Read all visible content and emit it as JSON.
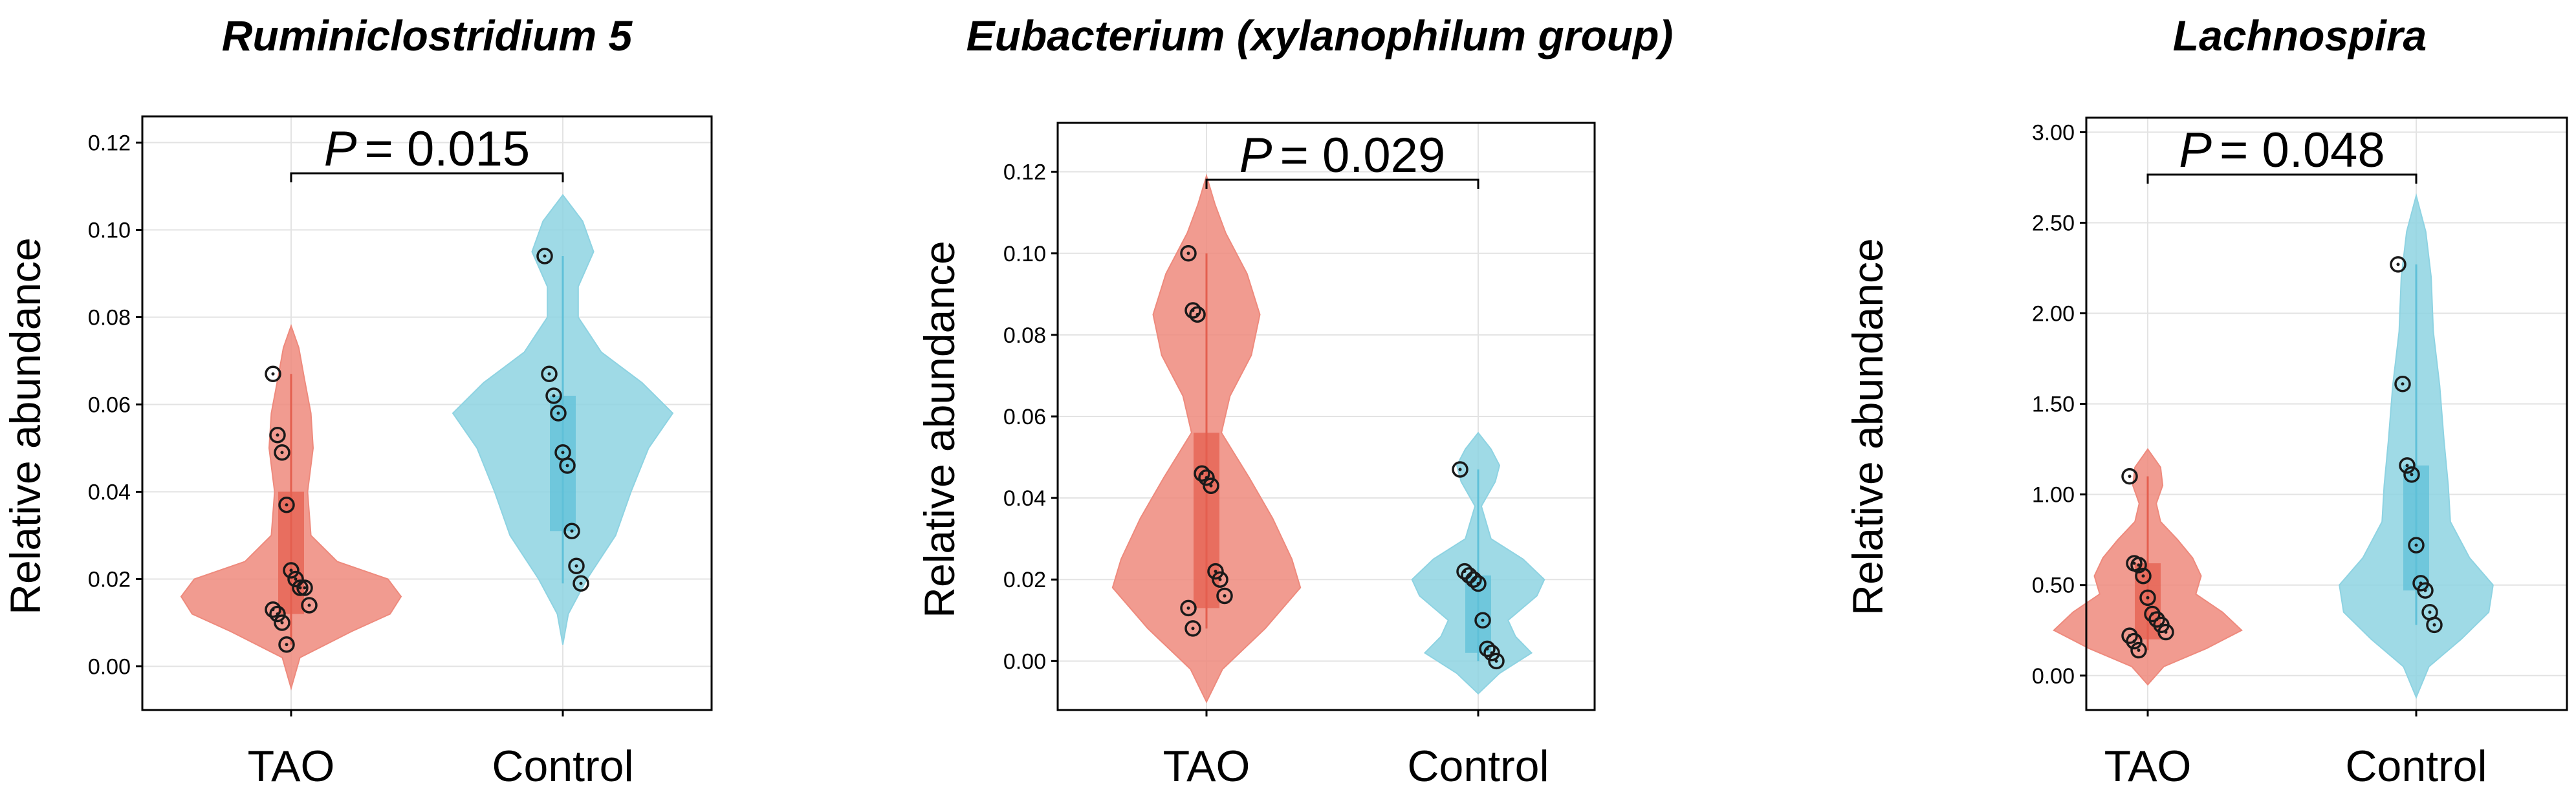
{
  "colors": {
    "tao": "#ee8a7d",
    "control": "#8ed3e2",
    "tao_box": "#e45f4f",
    "control_box": "#5fc0d8",
    "point": "#1a1a1a"
  },
  "chart_data": [
    {
      "type": "violin",
      "title": "Ruminiclostridium 5",
      "ylabel": "Relative abundance",
      "p_prefix": "P",
      "p_value": "= 0.015",
      "ylim": [
        -0.01,
        0.126
      ],
      "yticks": [
        0.0,
        0.02,
        0.04,
        0.06,
        0.08,
        0.1,
        0.12
      ],
      "ytick_labels": [
        "0.00",
        "0.02",
        "0.04",
        "0.06",
        "0.08",
        "0.10",
        "0.12"
      ],
      "categories": [
        "TAO",
        "Control"
      ],
      "series": [
        {
          "points": [
            0.067,
            0.053,
            0.049,
            0.037,
            0.022,
            0.02,
            0.018,
            0.018,
            0.014,
            0.013,
            0.012,
            0.01,
            0.005
          ],
          "box": [
            0.012,
            0.04
          ],
          "violin": [
            [
              -0.005,
              0
            ],
            [
              0.002,
              0.08
            ],
            [
              0.008,
              0.55
            ],
            [
              0.012,
              0.9
            ],
            [
              0.016,
              1.0
            ],
            [
              0.02,
              0.88
            ],
            [
              0.024,
              0.42
            ],
            [
              0.03,
              0.18
            ],
            [
              0.04,
              0.15
            ],
            [
              0.05,
              0.2
            ],
            [
              0.058,
              0.18
            ],
            [
              0.066,
              0.12
            ],
            [
              0.073,
              0.07
            ],
            [
              0.078,
              0
            ]
          ]
        },
        {
          "points": [
            0.094,
            0.067,
            0.062,
            0.058,
            0.049,
            0.046,
            0.031,
            0.023,
            0.019
          ],
          "box": [
            0.031,
            0.062
          ],
          "violin": [
            [
              0.005,
              0
            ],
            [
              0.012,
              0.05
            ],
            [
              0.02,
              0.22
            ],
            [
              0.03,
              0.48
            ],
            [
              0.04,
              0.62
            ],
            [
              0.05,
              0.78
            ],
            [
              0.058,
              1.0
            ],
            [
              0.065,
              0.72
            ],
            [
              0.072,
              0.35
            ],
            [
              0.08,
              0.14
            ],
            [
              0.087,
              0.14
            ],
            [
              0.095,
              0.28
            ],
            [
              0.102,
              0.18
            ],
            [
              0.108,
              0
            ]
          ]
        }
      ]
    },
    {
      "type": "violin",
      "title": "Eubacterium (xylanophilum group)",
      "ylabel": "Relative abundance",
      "p_prefix": "P",
      "p_value": "= 0.029",
      "ylim": [
        -0.012,
        0.132
      ],
      "yticks": [
        0.0,
        0.02,
        0.04,
        0.06,
        0.08,
        0.1,
        0.12
      ],
      "ytick_labels": [
        "0.00",
        "0.02",
        "0.04",
        "0.06",
        "0.08",
        "0.10",
        "0.12"
      ],
      "categories": [
        "TAO",
        "Control"
      ],
      "series": [
        {
          "points": [
            0.1,
            0.086,
            0.085,
            0.046,
            0.045,
            0.043,
            0.022,
            0.02,
            0.016,
            0.013,
            0.008
          ],
          "box": [
            0.013,
            0.056
          ],
          "violin": [
            [
              -0.01,
              0
            ],
            [
              -0.002,
              0.15
            ],
            [
              0.008,
              0.55
            ],
            [
              0.018,
              0.88
            ],
            [
              0.025,
              0.8
            ],
            [
              0.035,
              0.62
            ],
            [
              0.045,
              0.4
            ],
            [
              0.056,
              0.14
            ],
            [
              0.065,
              0.22
            ],
            [
              0.075,
              0.42
            ],
            [
              0.085,
              0.5
            ],
            [
              0.095,
              0.38
            ],
            [
              0.105,
              0.18
            ],
            [
              0.112,
              0.08
            ],
            [
              0.119,
              0
            ]
          ]
        },
        {
          "points": [
            0.047,
            0.022,
            0.021,
            0.02,
            0.019,
            0.01,
            0.003,
            0.002,
            0.0
          ],
          "box": [
            0.002,
            0.021
          ],
          "violin": [
            [
              -0.008,
              0
            ],
            [
              -0.003,
              0.2
            ],
            [
              0.002,
              0.5
            ],
            [
              0.006,
              0.35
            ],
            [
              0.01,
              0.28
            ],
            [
              0.016,
              0.55
            ],
            [
              0.02,
              0.62
            ],
            [
              0.025,
              0.42
            ],
            [
              0.03,
              0.12
            ],
            [
              0.038,
              0.03
            ],
            [
              0.044,
              0.16
            ],
            [
              0.048,
              0.2
            ],
            [
              0.052,
              0.12
            ],
            [
              0.056,
              0
            ]
          ]
        }
      ]
    },
    {
      "type": "violin",
      "title": "Lachnospira",
      "ylabel": "Relative abundance",
      "p_prefix": "P",
      "p_value": "= 0.048",
      "ylim": [
        -0.19,
        3.08
      ],
      "yticks": [
        0.0,
        0.5,
        1.0,
        1.5,
        2.0,
        2.5,
        3.0
      ],
      "ytick_labels": [
        "0.00",
        "0.50",
        "1.00",
        "1.50",
        "2.00",
        "2.50",
        "3.00"
      ],
      "categories": [
        "TAO",
        "Control"
      ],
      "series": [
        {
          "points": [
            1.1,
            0.62,
            0.61,
            0.55,
            0.43,
            0.34,
            0.31,
            0.28,
            0.24,
            0.22,
            0.19,
            0.14
          ],
          "box": [
            0.2,
            0.62
          ],
          "violin": [
            [
              -0.05,
              0
            ],
            [
              0.05,
              0.15
            ],
            [
              0.15,
              0.55
            ],
            [
              0.25,
              0.88
            ],
            [
              0.35,
              0.7
            ],
            [
              0.45,
              0.45
            ],
            [
              0.55,
              0.5
            ],
            [
              0.65,
              0.42
            ],
            [
              0.75,
              0.28
            ],
            [
              0.85,
              0.12
            ],
            [
              0.95,
              0.08
            ],
            [
              1.05,
              0.14
            ],
            [
              1.15,
              0.12
            ],
            [
              1.25,
              0
            ]
          ]
        },
        {
          "points": [
            2.27,
            1.61,
            1.16,
            1.11,
            0.72,
            0.51,
            0.47,
            0.35,
            0.28
          ],
          "box": [
            0.47,
            1.16
          ],
          "violin": [
            [
              -0.12,
              0
            ],
            [
              0.05,
              0.12
            ],
            [
              0.2,
              0.42
            ],
            [
              0.35,
              0.68
            ],
            [
              0.5,
              0.72
            ],
            [
              0.65,
              0.5
            ],
            [
              0.85,
              0.32
            ],
            [
              1.05,
              0.3
            ],
            [
              1.3,
              0.26
            ],
            [
              1.6,
              0.22
            ],
            [
              1.9,
              0.16
            ],
            [
              2.2,
              0.14
            ],
            [
              2.45,
              0.09
            ],
            [
              2.65,
              0
            ]
          ]
        }
      ]
    }
  ]
}
